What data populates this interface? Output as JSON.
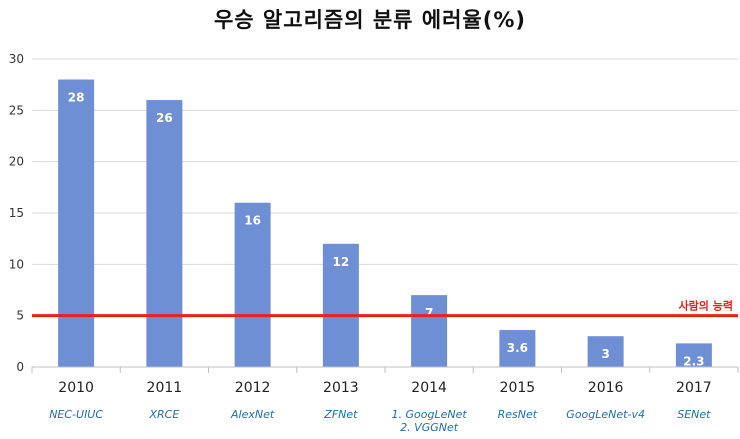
{
  "chart_data": {
    "type": "bar",
    "title": "우승 알고리즘의 분류 에러율(%)",
    "categories": [
      "2010",
      "2011",
      "2012",
      "2013",
      "2014",
      "2015",
      "2016",
      "2017"
    ],
    "subcategories": [
      "NEC-UIUC",
      "XRCE",
      "AlexNet",
      "ZFNet",
      "1. GoogLeNet\n2. VGGNet",
      "ResNet",
      "GoogLeNet-v4",
      "SENet"
    ],
    "values": [
      28,
      26,
      16,
      12,
      7,
      3.6,
      3,
      2.3
    ],
    "value_labels": [
      "28",
      "26",
      "16",
      "12",
      "7",
      "3.6",
      "3",
      "2.3"
    ],
    "ylim": [
      0,
      30
    ],
    "yticks": [
      0,
      5,
      10,
      15,
      20,
      25,
      30
    ],
    "grid": true,
    "reference_line": {
      "value": 5,
      "label": "사람의 능력",
      "color": "#e8211b"
    },
    "bar_color": "#6f8fd4",
    "label_color": "#1f6fa8"
  }
}
